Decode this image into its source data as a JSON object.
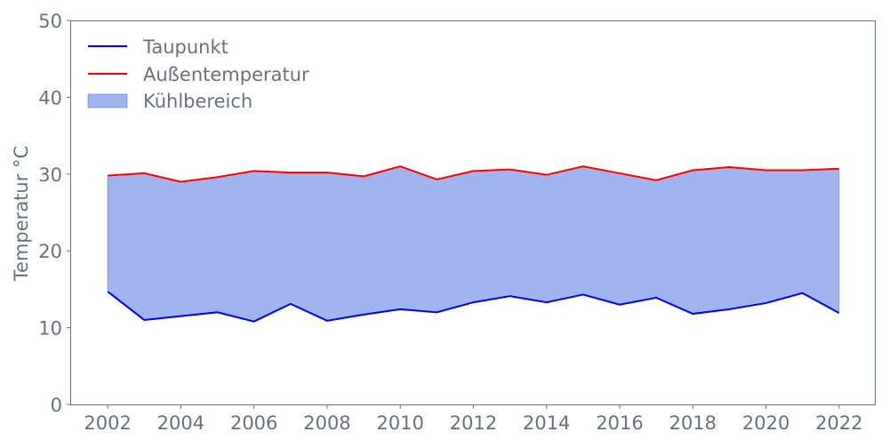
{
  "chart_data": {
    "type": "line",
    "title": "",
    "xlabel": "",
    "ylabel": "Temperatur °C",
    "xlim": [
      2001,
      2023
    ],
    "ylim": [
      0,
      50
    ],
    "xticks": [
      2002,
      2004,
      2006,
      2008,
      2010,
      2012,
      2014,
      2016,
      2018,
      2020,
      2022
    ],
    "yticks": [
      0,
      10,
      20,
      30,
      40,
      50
    ],
    "grid": false,
    "legend_position": "top-left",
    "x": [
      2002,
      2003,
      2004,
      2005,
      2006,
      2007,
      2008,
      2009,
      2010,
      2011,
      2012,
      2013,
      2014,
      2015,
      2016,
      2017,
      2018,
      2019,
      2020,
      2021,
      2022
    ],
    "series": [
      {
        "name": "Taupunkt",
        "color": "#0000ff",
        "values": [
          14.7,
          11.0,
          11.5,
          12.0,
          10.8,
          13.1,
          10.9,
          11.7,
          12.4,
          12.0,
          13.3,
          14.1,
          13.3,
          14.3,
          13.0,
          13.9,
          11.8,
          12.4,
          13.2,
          14.5,
          11.9
        ]
      },
      {
        "name": "Außentemperatur",
        "color": "#ff0000",
        "values": [
          29.8,
          30.1,
          29.0,
          29.6,
          30.4,
          30.2,
          30.2,
          29.7,
          31.0,
          29.3,
          30.4,
          30.6,
          29.9,
          31.0,
          30.1,
          29.2,
          30.5,
          30.9,
          30.5,
          30.5,
          30.7
        ]
      }
    ],
    "fill_between": {
      "name": "Kühlbereich",
      "color": "#4169e1",
      "opacity": 0.5,
      "lower": "Taupunkt",
      "upper": "Außentemperatur"
    }
  }
}
